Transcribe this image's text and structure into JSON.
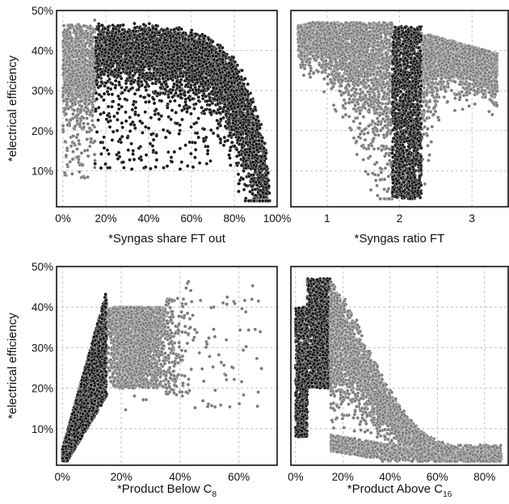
{
  "chart_data": [
    {
      "type": "scatter",
      "xlabel": "*Syngas share FT out",
      "ylabel": "*electrical efficiency",
      "xlim": [
        -3,
        100
      ],
      "ylim": [
        1,
        50
      ],
      "x_ticks": [
        0,
        20,
        40,
        60,
        80,
        100
      ],
      "x_tick_labels": [
        "0%",
        "20%",
        "40%",
        "60%",
        "80%",
        "100%"
      ],
      "y_ticks": [
        10,
        20,
        30,
        40,
        50
      ],
      "y_tick_labels": [
        "10%",
        "20%",
        "30%",
        "40%",
        "50%"
      ],
      "grid": true,
      "series": [
        {
          "color": "#7a7a7a",
          "region": "x 0–15%",
          "x_range": [
            0,
            15
          ],
          "y_range": [
            8,
            48
          ]
        },
        {
          "color": "#111111",
          "region": "x 15–96%",
          "x_range": [
            15,
            96
          ],
          "y_upper_profile": [
            [
              15,
              47
            ],
            [
              40,
              44
            ],
            [
              60,
              40
            ],
            [
              75,
              33
            ],
            [
              85,
              24
            ],
            [
              92,
              13
            ],
            [
              96,
              3
            ]
          ]
        }
      ]
    },
    {
      "type": "scatter",
      "xlabel": "*Syngas ratio FT",
      "ylabel": "",
      "xlim": [
        0.5,
        3.5
      ],
      "ylim": [
        1,
        50
      ],
      "x_ticks": [
        1,
        2,
        3
      ],
      "x_tick_labels": [
        "1",
        "2",
        "3"
      ],
      "y_ticks": [
        10,
        20,
        30,
        40,
        50
      ],
      "grid": true,
      "series": [
        {
          "color": "#7a7a7a",
          "region": "outside 1.9–2.3",
          "x_range": [
            0.6,
            3.35
          ],
          "y_range": [
            3,
            47
          ]
        },
        {
          "color": "#111111",
          "region": "x 1.9–2.3",
          "x_range": [
            1.9,
            2.3
          ],
          "y_range": [
            3,
            47
          ]
        }
      ]
    },
    {
      "type": "scatter",
      "xlabel": "*Product Below C",
      "xlabel_sub": "8",
      "ylabel": "*electrical efficiency",
      "xlim": [
        -2,
        73
      ],
      "ylim": [
        1,
        50
      ],
      "x_ticks": [
        0,
        20,
        40,
        60
      ],
      "x_tick_labels": [
        "0%",
        "20%",
        "40%",
        "60%"
      ],
      "y_ticks": [
        10,
        20,
        30,
        40,
        50
      ],
      "y_tick_labels": [
        "10%",
        "20%",
        "30%",
        "40%",
        "50%"
      ],
      "grid": true,
      "series": [
        {
          "color": "#111111",
          "region": "x 0–15%",
          "x_range": [
            0,
            15
          ],
          "y_range": [
            2,
            44
          ]
        },
        {
          "color": "#7a7a7a",
          "region": "x 15–70%",
          "x_range": [
            15,
            70
          ],
          "y_range": [
            8,
            48
          ]
        }
      ]
    },
    {
      "type": "scatter",
      "xlabel": "*Product Above C",
      "xlabel_sub": "16",
      "ylabel": "",
      "xlim": [
        -2,
        90
      ],
      "ylim": [
        1,
        50
      ],
      "x_ticks": [
        0,
        20,
        40,
        60,
        80
      ],
      "x_tick_labels": [
        "0%",
        "20%",
        "40%",
        "60%",
        "80%"
      ],
      "y_ticks": [
        10,
        20,
        30,
        40,
        50
      ],
      "grid": true,
      "series": [
        {
          "color": "#111111",
          "region": "x 0–15%",
          "x_range": [
            0,
            15
          ],
          "y_range": [
            5,
            48
          ]
        },
        {
          "color": "#7a7a7a",
          "region": "x 15–87%",
          "x_range": [
            15,
            87
          ],
          "y_range": [
            2,
            47
          ]
        }
      ]
    }
  ]
}
